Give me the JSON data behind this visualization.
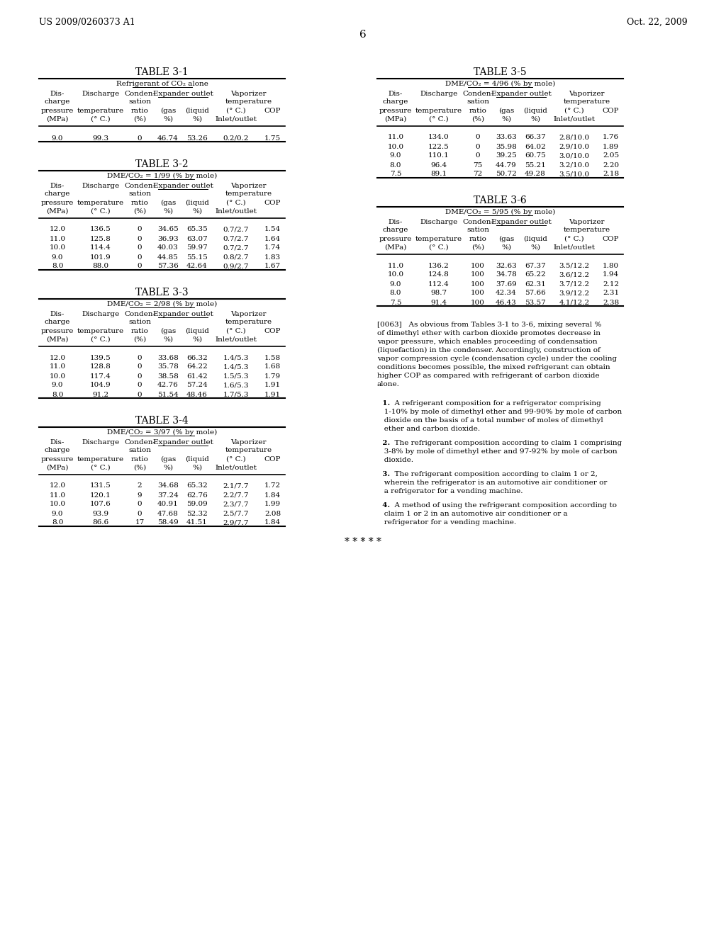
{
  "header_left": "US 2009/0260373 A1",
  "header_right": "Oct. 22, 2009",
  "page_number": "6",
  "tables": [
    {
      "title": "TABLE 3-1",
      "subtitle": "Refrigerant of CO₂ alone",
      "subtitle_underline": true,
      "col_headers_row1": [
        "Dis-\ncharge",
        "Discharge",
        "Conden-\nsation",
        "Expander outlet",
        "",
        "Vaporizer\ntemperature",
        ""
      ],
      "col_headers_row2": [
        "pressure\n(MPa)",
        "temperature\n(° C.)",
        "ratio\n(%)",
        "(gas\n%)",
        "(liquid\n%)",
        "(° C.)\nInlet/outlet",
        "COP"
      ],
      "expander_outlet_underline": true,
      "data": [
        [
          "9.0",
          "99.3",
          "0",
          "46.74",
          "53.26",
          "0.2/0.2",
          "1.75"
        ]
      ]
    },
    {
      "title": "TABLE 3-2",
      "subtitle": "DME/CO₂ = 1/99 (% by mole)",
      "subtitle_underline": true,
      "col_headers_row1": [
        "Dis-\ncharge",
        "Discharge",
        "Conden-\nsation",
        "Expander outlet",
        "",
        "Vaporizer\ntemperature",
        ""
      ],
      "col_headers_row2": [
        "pressure\n(MPa)",
        "temperature\n(° C.)",
        "ratio\n(%)",
        "(gas\n%)",
        "(liquid\n%)",
        "(° C.)\nInlet/outlet",
        "COP"
      ],
      "data": [
        [
          "12.0",
          "136.5",
          "0",
          "34.65",
          "65.35",
          "0.7/2.7",
          "1.54"
        ],
        [
          "11.0",
          "125.8",
          "0",
          "36.93",
          "63.07",
          "0.7/2.7",
          "1.64"
        ],
        [
          "10.0",
          "114.4",
          "0",
          "40.03",
          "59.97",
          "0.7/2.7",
          "1.74"
        ],
        [
          "9.0",
          "101.9",
          "0",
          "44.85",
          "55.15",
          "0.8/2.7",
          "1.83"
        ],
        [
          "8.0",
          "88.0",
          "0",
          "57.36",
          "42.64",
          "0.9/2.7",
          "1.67"
        ]
      ]
    },
    {
      "title": "TABLE 3-3",
      "subtitle": "DME/CO₂ = 2/98 (% by mole)",
      "subtitle_underline": true,
      "col_headers_row1": [
        "Dis-\ncharge",
        "Discharge",
        "Conden-\nsation",
        "Expander outlet",
        "",
        "Vaporizer\ntemperature",
        ""
      ],
      "col_headers_row2": [
        "pressure\n(MPa)",
        "temperature\n(° C.)",
        "ratio\n(%)",
        "(gas\n%)",
        "(liquid\n%)",
        "(° C.)\nInlet/outlet",
        "COP"
      ],
      "data": [
        [
          "12.0",
          "139.5",
          "0",
          "33.68",
          "66.32",
          "1.4/5.3",
          "1.58"
        ],
        [
          "11.0",
          "128.8",
          "0",
          "35.78",
          "64.22",
          "1.4/5.3",
          "1.68"
        ],
        [
          "10.0",
          "117.4",
          "0",
          "38.58",
          "61.42",
          "1.5/5.3",
          "1.79"
        ],
        [
          "9.0",
          "104.9",
          "0",
          "42.76",
          "57.24",
          "1.6/5.3",
          "1.91"
        ],
        [
          "8.0",
          "91.2",
          "0",
          "51.54",
          "48.46",
          "1.7/5.3",
          "1.91"
        ]
      ]
    },
    {
      "title": "TABLE 3-4",
      "subtitle": "DME/CO₂ = 3/97 (% by mole)",
      "subtitle_underline": true,
      "col_headers_row1": [
        "Dis-\ncharge",
        "Discharge",
        "Conden-\nsation",
        "Expander outlet",
        "",
        "Vaporizer\ntemperature",
        ""
      ],
      "col_headers_row2": [
        "pressure\n(MPa)",
        "temperature\n(° C.)",
        "ratio\n(%)",
        "(gas\n%)",
        "(liquid\n%)",
        "(° C.)\nInlet/outlet",
        "COP"
      ],
      "data": [
        [
          "12.0",
          "131.5",
          "2",
          "34.68",
          "65.32",
          "2.1/7.7",
          "1.72"
        ],
        [
          "11.0",
          "120.1",
          "9",
          "37.24",
          "62.76",
          "2.2/7.7",
          "1.84"
        ],
        [
          "10.0",
          "107.6",
          "0",
          "40.91",
          "59.09",
          "2.3/7.7",
          "1.99"
        ],
        [
          "9.0",
          "93.9",
          "0",
          "47.68",
          "52.32",
          "2.5/7.7",
          "2.08"
        ],
        [
          "8.0",
          "86.6",
          "17",
          "58.49",
          "41.51",
          "2.9/7.7",
          "1.84"
        ]
      ]
    }
  ],
  "tables_right": [
    {
      "title": "TABLE 3-5",
      "subtitle": "DME/CO₂ = 4/96 (% by mole)",
      "subtitle_underline": true,
      "col_headers_row1": [
        "Dis-\ncharge",
        "Discharge",
        "Conden-\nsation",
        "Expander outlet",
        "",
        "Vaporizer\ntemperature",
        ""
      ],
      "col_headers_row2": [
        "pressure\n(MPa)",
        "temperature\n(° C.)",
        "ratio\n(%)",
        "(gas\n%)",
        "(liquid\n%)",
        "(° C.)\nInlet/outlet",
        "COP"
      ],
      "data": [
        [
          "11.0",
          "134.0",
          "0",
          "33.63",
          "66.37",
          "2.8/10.0",
          "1.76"
        ],
        [
          "10.0",
          "122.5",
          "0",
          "35.98",
          "64.02",
          "2.9/10.0",
          "1.89"
        ],
        [
          "9.0",
          "110.1",
          "0",
          "39.25",
          "60.75",
          "3.0/10.0",
          "2.05"
        ],
        [
          "8.0",
          "96.4",
          "75",
          "44.79",
          "55.21",
          "3.2/10.0",
          "2.20"
        ],
        [
          "7.5",
          "89.1",
          "72",
          "50.72",
          "49.28",
          "3.5/10.0",
          "2.18"
        ]
      ]
    },
    {
      "title": "TABLE 3-6",
      "subtitle": "DME/CO₂ = 5/95 (% by mole)",
      "subtitle_underline": true,
      "col_headers_row1": [
        "Dis-\ncharge",
        "Discharge",
        "Conden-\nsation",
        "Expander outlet",
        "",
        "Vaporizer\ntemperature",
        ""
      ],
      "col_headers_row2": [
        "pressure\n(MPa)",
        "temperature\n(° C.)",
        "ratio\n(%)",
        "(gas\n%)",
        "(liquid\n%)",
        "(° C.)\nInlet/outlet",
        "COP"
      ],
      "data": [
        [
          "11.0",
          "136.2",
          "100",
          "32.63",
          "67.37",
          "3.5/12.2",
          "1.80"
        ],
        [
          "10.0",
          "124.8",
          "100",
          "34.78",
          "65.22",
          "3.6/12.2",
          "1.94"
        ],
        [
          "9.0",
          "112.4",
          "100",
          "37.69",
          "62.31",
          "3.7/12.2",
          "2.12"
        ],
        [
          "8.0",
          "98.7",
          "100",
          "42.34",
          "57.66",
          "3.9/12.2",
          "2.31"
        ],
        [
          "7.5",
          "91.4",
          "100",
          "46.43",
          "53.57",
          "4.1/12.2",
          "2.38"
        ]
      ]
    }
  ],
  "paragraph_0063": "[0063]   As obvious from Tables 3-1 to 3-6, mixing several % of dimethyl ether with carbon dioxide promotes decrease in vapor pressure, which enables proceeding of condensation (liquefaction) in the condenser. Accordingly, construction of vapor compression cycle (condensation cycle) under the cooling conditions becomes possible, the mixed refrigerant can obtain higher COP as compared with refrigerant of carbon dioxide alone.",
  "claims": [
    "1.  A refrigerant composition for a refrigerator comprising 1-10% by mole of dimethyl ether and 99-90% by mole of carbon dioxide on the basis of a total number of moles of dimethyl ether and carbon dioxide.",
    "2.  The refrigerant composition according to claim 1 comprising 3-8% by mole of dimethyl ether and 97-92% by mole of carbon dioxide.",
    "3.  The refrigerant composition according to claim 1 or 2, wherein the refrigerator is an automotive air conditioner or a refrigerator for a vending machine.",
    "4.  A method of using the refrigerant composition according to claim 1 or 2 in an automotive air conditioner or a refrigerator for a vending machine."
  ],
  "claim_bold_numbers": [
    "1.",
    "2.",
    "3.",
    "4."
  ],
  "stars": "* * * * *"
}
